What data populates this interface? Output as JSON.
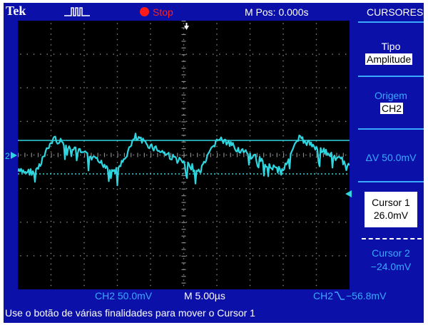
{
  "header": {
    "brand": "Tek",
    "trigger_icon": "pulse-trigger-icon",
    "run_status": "Stop",
    "run_status_color": "#ff1a1a",
    "horizontal_position": "M Pos: 0.000s",
    "menu_title": "CURSORES"
  },
  "side_menu": {
    "tipo_label": "Tipo",
    "tipo_value": "Amplitude",
    "origem_label": "Origem",
    "origem_value": "CH2",
    "delta_v": "ΔV 50.0mV",
    "cursor1_label": "Cursor 1",
    "cursor1_value": "26.0mV",
    "cursor2_label": "Cursor 2",
    "cursor2_value": "−24.0mV"
  },
  "status_bar": {
    "ch2_scale": "CH2  50.0mV",
    "timebase": "M 5.00µs",
    "trigger_source": "CH2",
    "trigger_slope_icon": "falling-edge-icon",
    "trigger_level": "−56.8mV",
    "help_text": "Use o botão de várias finalidades para mover o Cursor 1"
  },
  "display": {
    "channel_marker": "2",
    "trace_color": "#2fd6e0",
    "background_color": "#000000",
    "frame_color": "#0a10a8",
    "grid_divisions_x": 10,
    "grid_divisions_y": 8
  }
}
